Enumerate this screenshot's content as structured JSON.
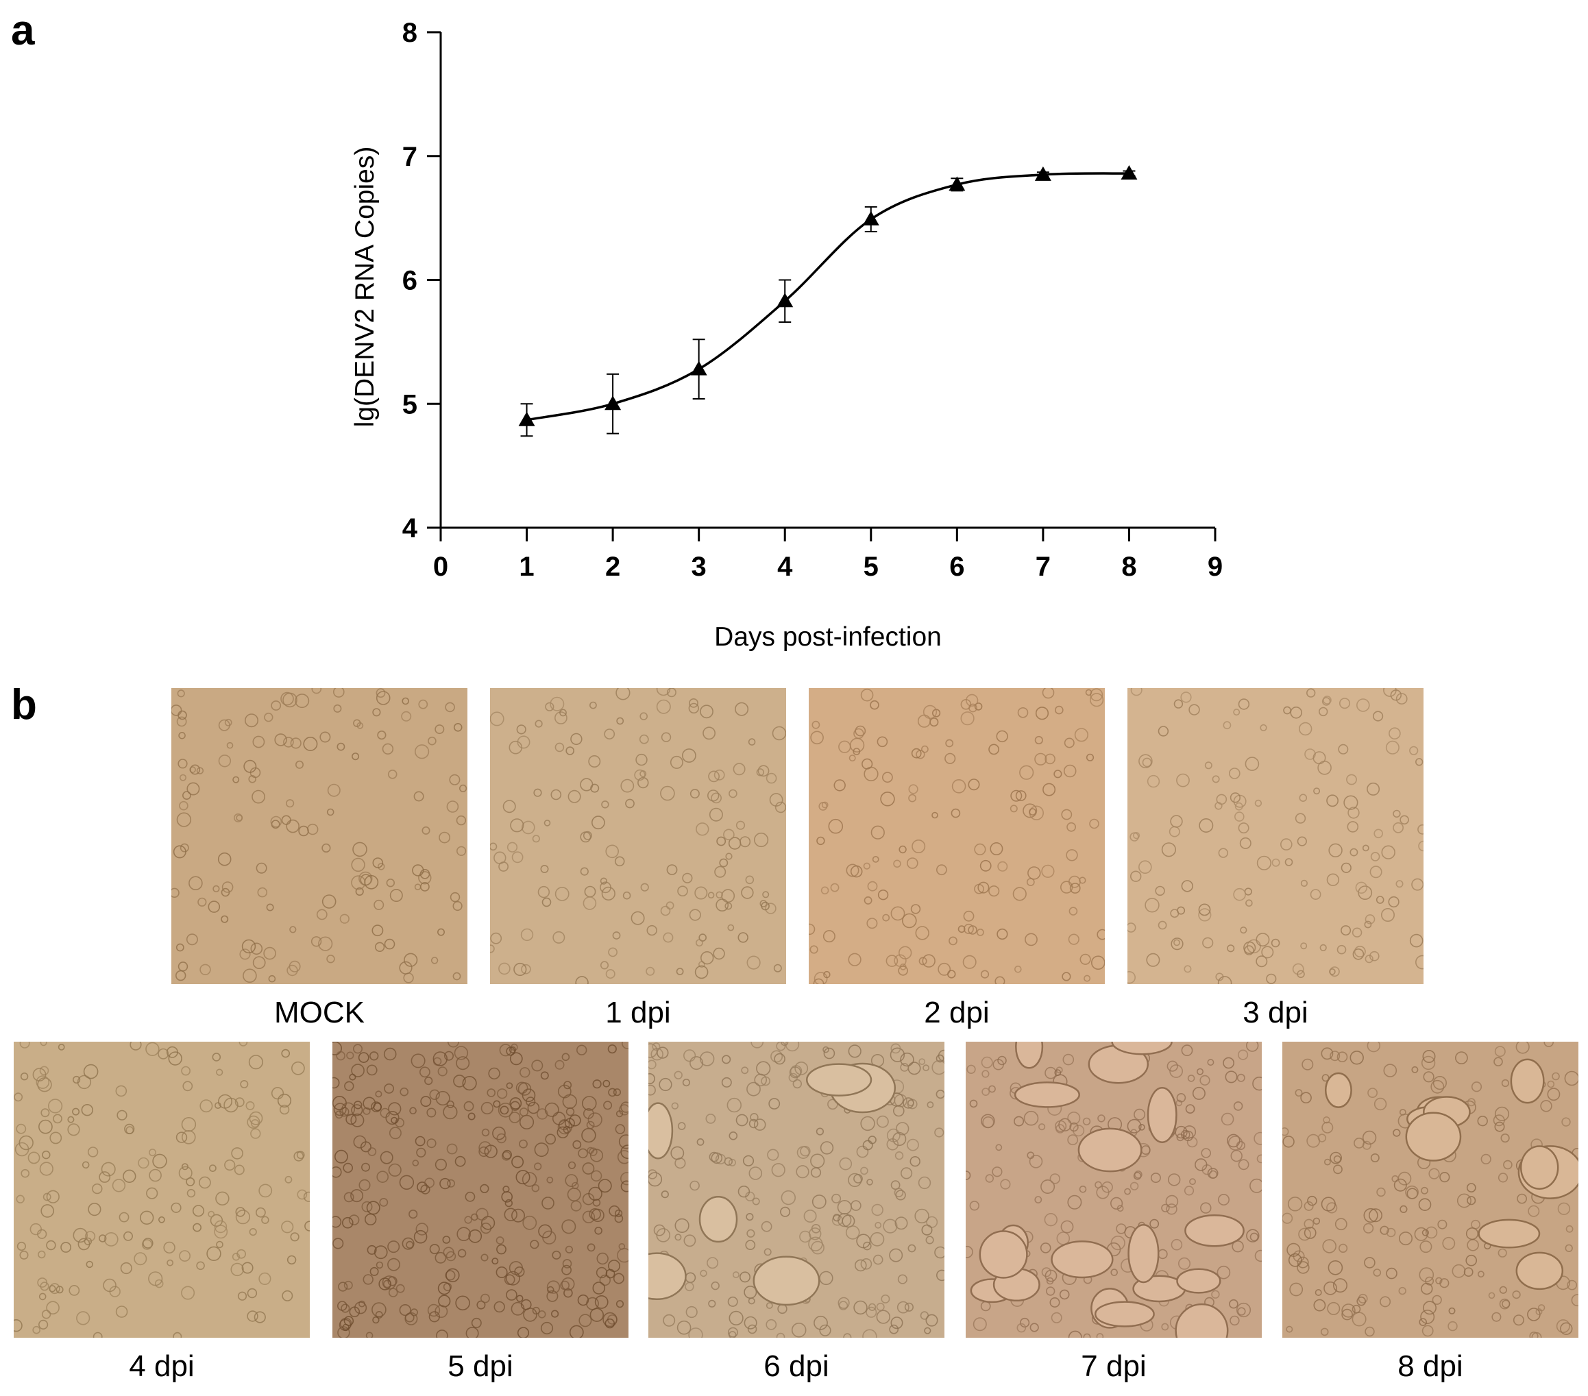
{
  "panels": {
    "a_label": "a",
    "b_label": "b"
  },
  "chart_data": {
    "type": "line",
    "title": "",
    "xlabel": "Days post-infection",
    "ylabel": "lg(DENV2 RNA Copies)",
    "xlim": [
      0,
      9
    ],
    "ylim": [
      4,
      8
    ],
    "x_ticks": [
      "0",
      "1",
      "2",
      "3",
      "4",
      "5",
      "6",
      "7",
      "8",
      "9"
    ],
    "y_ticks": [
      "4",
      "5",
      "6",
      "7",
      "8"
    ],
    "grid": false,
    "legend": "none",
    "marker": "triangle",
    "line_color": "#000000",
    "x": [
      1,
      2,
      3,
      4,
      5,
      6,
      7,
      8
    ],
    "y": [
      4.87,
      5.0,
      5.28,
      5.83,
      6.49,
      6.77,
      6.85,
      6.86
    ],
    "error": [
      0.13,
      0.24,
      0.24,
      0.17,
      0.1,
      0.05,
      0.02,
      0.02
    ]
  },
  "micrographs": {
    "row1": [
      {
        "caption": "MOCK",
        "tone": "#c9a983",
        "cells": "sparse round cells, confluent monolayer"
      },
      {
        "caption": "1 dpi",
        "tone": "#cdb08c",
        "cells": "confluent monolayer"
      },
      {
        "caption": "2 dpi",
        "tone": "#d4ad86",
        "cells": "confluent monolayer"
      },
      {
        "caption": "3 dpi",
        "tone": "#d4b490",
        "cells": "confluent monolayer"
      }
    ],
    "row2": [
      {
        "caption": "4 dpi",
        "tone": "#c9ae88",
        "cells": "rounded cells"
      },
      {
        "caption": "5 dpi",
        "tone": "#a98769",
        "cells": "dense rounded cells"
      },
      {
        "caption": "6 dpi",
        "tone": "#c7ad8e",
        "cells": "cell clustering"
      },
      {
        "caption": "7 dpi",
        "tone": "#c8a588",
        "cells": "syncytia and vacuoles"
      },
      {
        "caption": "8 dpi",
        "tone": "#c7a584",
        "cells": "cytopathic effect"
      }
    ]
  }
}
